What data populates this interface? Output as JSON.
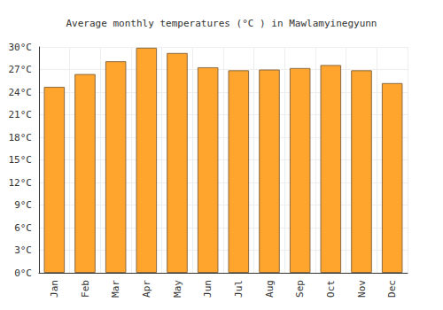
{
  "chart_data": {
    "type": "bar",
    "title": "Average monthly temperatures (°C ) in Mawlamyinegyunn",
    "categories": [
      "Jan",
      "Feb",
      "Mar",
      "Apr",
      "May",
      "Jun",
      "Jul",
      "Aug",
      "Sep",
      "Oct",
      "Nov",
      "Dec"
    ],
    "values": [
      24.7,
      26.4,
      28.1,
      29.9,
      29.2,
      27.3,
      26.9,
      27.0,
      27.2,
      27.6,
      26.9,
      25.2
    ],
    "color": "#ffa52e",
    "ylim": [
      0,
      30
    ],
    "yticks": [
      {
        "value": 0,
        "label": "0°C"
      },
      {
        "value": 3,
        "label": "3°C"
      },
      {
        "value": 6,
        "label": "6°C"
      },
      {
        "value": 9,
        "label": "9°C"
      },
      {
        "value": 12,
        "label": "12°C"
      },
      {
        "value": 15,
        "label": "15°C"
      },
      {
        "value": 18,
        "label": "18°C"
      },
      {
        "value": 21,
        "label": "21°C"
      },
      {
        "value": 24,
        "label": "24°C"
      },
      {
        "value": 27,
        "label": "27°C"
      },
      {
        "value": 30,
        "label": "30°C"
      }
    ],
    "grid": true
  }
}
